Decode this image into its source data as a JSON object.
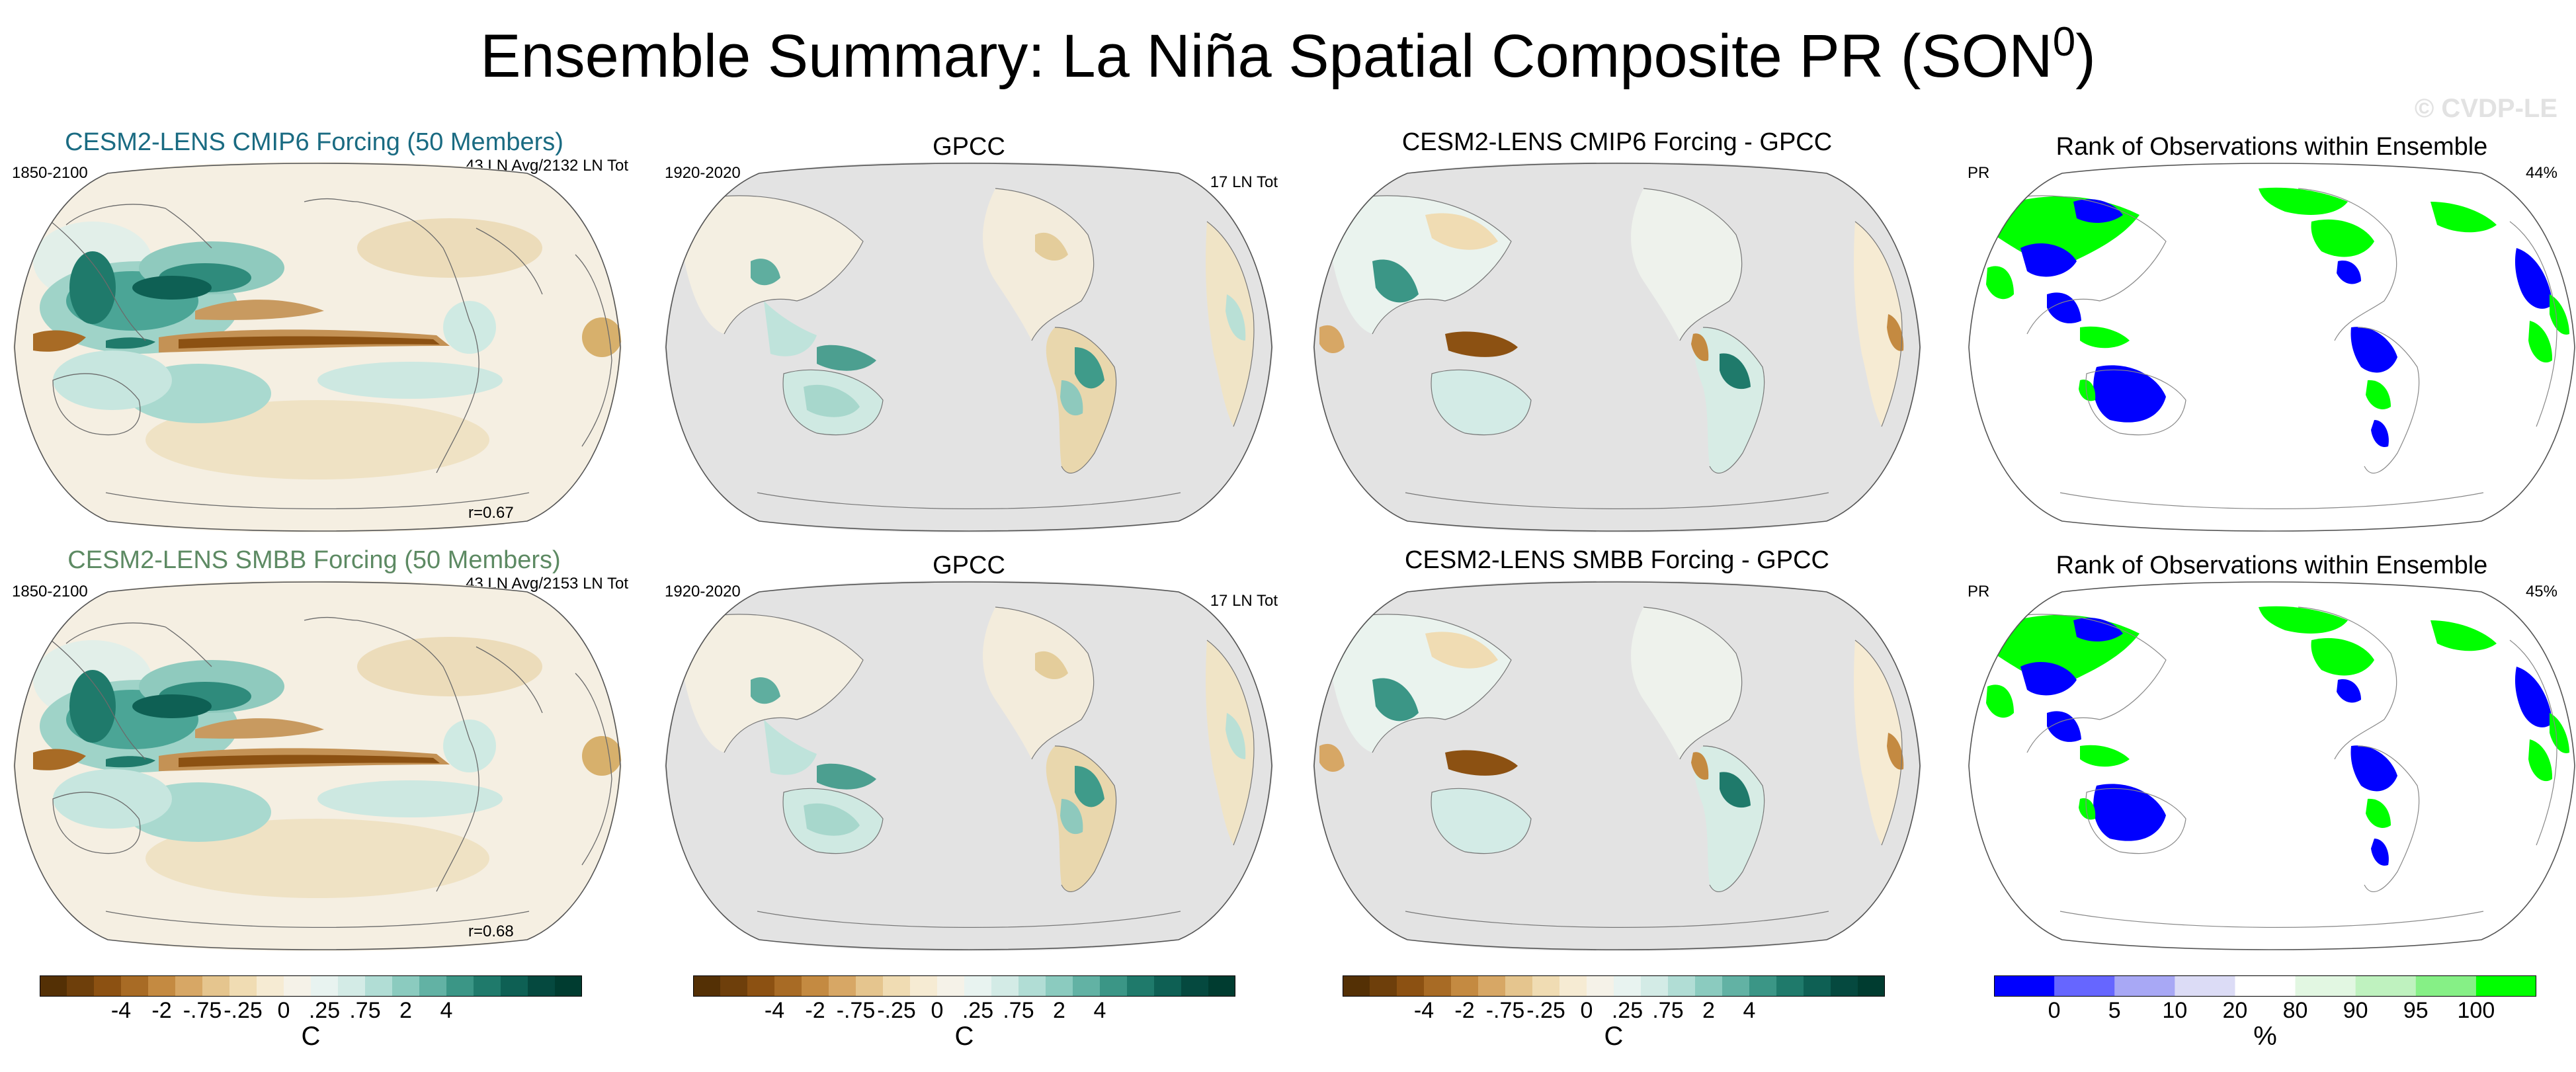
{
  "title": "Ensemble Summary: La Niña Spatial Composite PR (SON",
  "title_sup": "0",
  "title_close": ")",
  "watermark": "© CVDP-LE",
  "rows": [
    {
      "model": {
        "title": "CESM2-LENS CMIP6 Forcing (50 Members)",
        "title_color": "#1a6b82",
        "period": "1850-2100",
        "count": "43 LN Avg/2132 LN Tot",
        "corr": "r=0.67"
      },
      "obs": {
        "title": "GPCC",
        "period": "1920-2020",
        "count": "17 LN Tot"
      },
      "diff": {
        "title": "CESM2-LENS CMIP6 Forcing - GPCC"
      },
      "rank": {
        "title": "Rank of Observations within Ensemble",
        "var": "PR",
        "pct": "44%"
      }
    },
    {
      "model": {
        "title": "CESM2-LENS SMBB Forcing (50 Members)",
        "title_color": "#5d8a63",
        "period": "1850-2100",
        "count": "43 LN Avg/2153 LN Tot",
        "corr": "r=0.68"
      },
      "obs": {
        "title": "GPCC",
        "period": "1920-2020",
        "count": "17 LN Tot"
      },
      "diff": {
        "title": "CESM2-LENS SMBB Forcing - GPCC"
      },
      "rank": {
        "title": "Rank of Observations within Ensemble",
        "var": "PR",
        "pct": "45%"
      }
    }
  ],
  "colorbar_brbg": {
    "colors": [
      "#543005",
      "#6e3f0b",
      "#8c5112",
      "#a86b25",
      "#c48a41",
      "#d7a765",
      "#e5c58e",
      "#f0dcb3",
      "#f6ebd3",
      "#f5f2e8",
      "#e8f3f0",
      "#d3ebe6",
      "#b1ddd5",
      "#8bcbbf",
      "#62b2a4",
      "#3b9686",
      "#1f7a6b",
      "#0e6054",
      "#05493f",
      "#003c30"
    ],
    "ticks": [
      "-4",
      "-2",
      "-.75",
      "-.25",
      "0",
      ".25",
      ".75",
      "2",
      "4"
    ],
    "unit": "C"
  },
  "colorbar_rank": {
    "colors": [
      "#0000ff",
      "#6666ff",
      "#a8a8f5",
      "#dcdcf6",
      "#ffffff",
      "#e2f7e2",
      "#bff2bf",
      "#86f086",
      "#00ff00"
    ],
    "ticks": [
      "0",
      "5",
      "10",
      "20",
      "80",
      "90",
      "95",
      "100"
    ],
    "unit": "%"
  }
}
